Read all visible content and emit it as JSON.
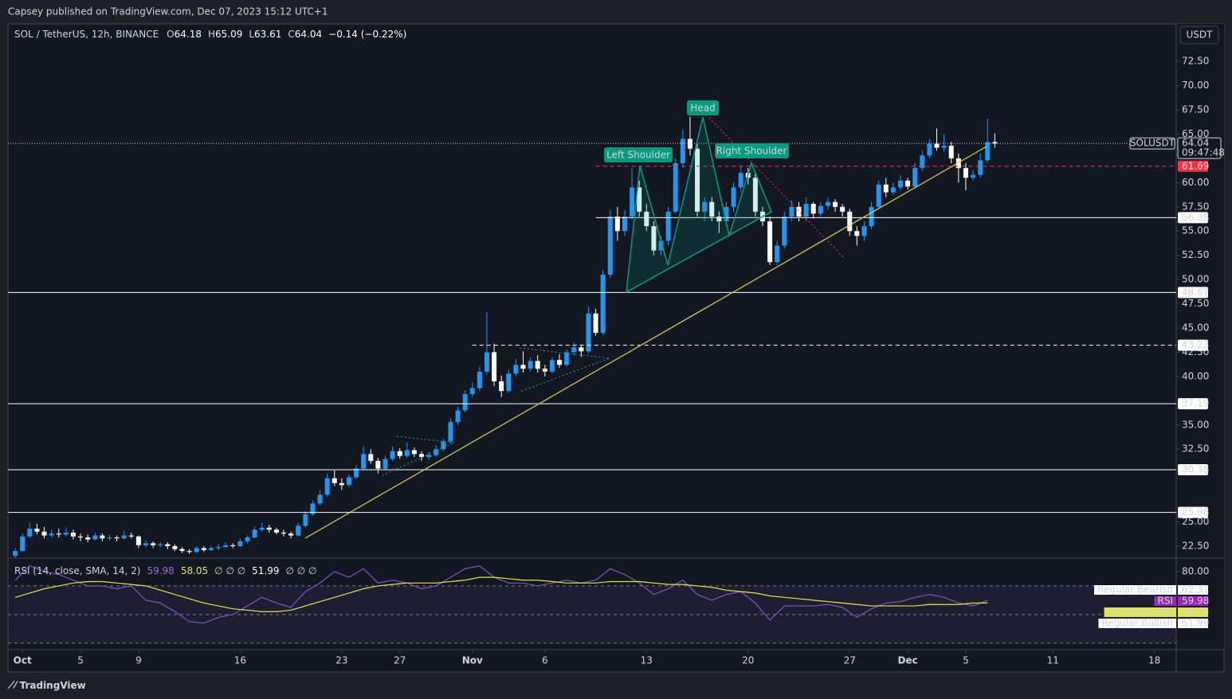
{
  "header": {
    "published": "Capsey published on TradingView.com, Dec 07, 2023 15:12 UTC+1",
    "symbol": "SOL / TetherUS, 12h, BINANCE",
    "ohlc_keys": [
      "O",
      "H",
      "L",
      "C"
    ],
    "ohlc_values": [
      "64.18",
      "65.09",
      "63.61",
      "64.04"
    ],
    "change": "−0.14 (−0.22%)",
    "footer": "TradingView"
  },
  "annotations": {
    "head": "Head",
    "left": "Left Shoulder",
    "right": "Right Shoulder"
  },
  "chart_data": [
    {
      "type": "candlestick",
      "currency": "USDT",
      "symbol_label": "SOLUSDT",
      "countdown": "09:47:48",
      "last_price": 64.04,
      "up_color": "#2196f3",
      "down_color": "#ffffff",
      "ylim": [
        21.27,
        76.37
      ],
      "yticks": [
        {
          "value": 72.5,
          "label": "72.50"
        },
        {
          "value": 70,
          "label": "70.00"
        },
        {
          "value": 67.5,
          "label": "67.50"
        },
        {
          "value": 65,
          "label": "65.00"
        },
        {
          "value": 60,
          "label": "60.00"
        },
        {
          "value": 57.5,
          "label": "57.50"
        },
        {
          "value": 55,
          "label": "55.00"
        },
        {
          "value": 52.5,
          "label": "52.50"
        },
        {
          "value": 50,
          "label": "50.00"
        },
        {
          "value": 47.5,
          "label": "47.50"
        },
        {
          "value": 45,
          "label": "45.00"
        },
        {
          "value": 42.5,
          "label": "42.50"
        },
        {
          "value": 40,
          "label": "40.00"
        },
        {
          "value": 35,
          "label": "35.00"
        },
        {
          "value": 32.5,
          "label": "32.50"
        },
        {
          "value": 25,
          "label": "25.00"
        },
        {
          "value": 22.5,
          "label": "22.50"
        }
      ],
      "xlim": [
        -1,
        160
      ],
      "xticks": [
        {
          "value": 1,
          "label": "Oct"
        },
        {
          "value": 9,
          "label": "5"
        },
        {
          "value": 17,
          "label": "9"
        },
        {
          "value": 31,
          "label": "16"
        },
        {
          "value": 45,
          "label": "23"
        },
        {
          "value": 53,
          "label": "27"
        },
        {
          "value": 63,
          "label": "Nov"
        },
        {
          "value": 73,
          "label": "6"
        },
        {
          "value": 87,
          "label": "13"
        },
        {
          "value": 101,
          "label": "20"
        },
        {
          "value": 115,
          "label": "27"
        },
        {
          "value": 123,
          "label": "Dec"
        },
        {
          "value": 131,
          "label": "5"
        },
        {
          "value": 143,
          "label": "11"
        },
        {
          "value": 157,
          "label": "18"
        }
      ],
      "levels": [
        {
          "value": 61.69,
          "style": "dashed",
          "color": "#f23645",
          "start": 80
        },
        {
          "value": 56.38,
          "style": "solid",
          "color": "#ffffff",
          "start": 80
        },
        {
          "value": 48.67,
          "style": "solid",
          "color": "#ffffff"
        },
        {
          "value": 43.23,
          "style": "dashed",
          "color": "#ffffff",
          "start": 63
        },
        {
          "value": 37.19,
          "style": "solid",
          "color": "#ffffff"
        },
        {
          "value": 30.38,
          "style": "solid",
          "color": "#ffffff"
        },
        {
          "value": 25.98,
          "style": "solid",
          "color": "#ffffff"
        }
      ],
      "candles": [
        [
          21.5,
          22.3,
          21.3,
          22.0
        ],
        [
          22.0,
          23.8,
          21.9,
          23.5
        ],
        [
          23.5,
          24.9,
          23.3,
          24.3
        ],
        [
          24.3,
          24.8,
          23.7,
          24.0
        ],
        [
          24.0,
          24.5,
          23.3,
          23.6
        ],
        [
          23.6,
          24.2,
          23.4,
          23.8
        ],
        [
          23.8,
          24.3,
          23.4,
          23.7
        ],
        [
          23.7,
          24.4,
          23.5,
          23.9
        ],
        [
          23.9,
          24.2,
          23.2,
          23.5
        ],
        [
          23.5,
          23.8,
          23.0,
          23.4
        ],
        [
          23.4,
          23.7,
          22.9,
          23.2
        ],
        [
          23.2,
          23.9,
          23.1,
          23.6
        ],
        [
          23.6,
          23.8,
          23.0,
          23.3
        ],
        [
          23.3,
          23.7,
          23.1,
          23.4
        ],
        [
          23.4,
          23.6,
          23.0,
          23.3
        ],
        [
          23.3,
          24.1,
          23.2,
          23.6
        ],
        [
          23.6,
          23.9,
          23.3,
          23.5
        ],
        [
          23.5,
          23.6,
          22.3,
          22.6
        ],
        [
          22.6,
          23.1,
          22.4,
          22.8
        ],
        [
          22.8,
          23.0,
          22.3,
          22.6
        ],
        [
          22.6,
          22.9,
          22.4,
          22.7
        ],
        [
          22.7,
          22.9,
          22.2,
          22.5
        ],
        [
          22.5,
          22.7,
          22.0,
          22.2
        ],
        [
          22.2,
          22.4,
          21.8,
          22.0
        ],
        [
          22.0,
          22.2,
          21.7,
          21.9
        ],
        [
          21.9,
          22.5,
          21.8,
          22.3
        ],
        [
          22.3,
          22.5,
          21.9,
          22.1
        ],
        [
          22.1,
          22.5,
          22.0,
          22.3
        ],
        [
          22.3,
          22.7,
          22.1,
          22.4
        ],
        [
          22.4,
          22.9,
          22.3,
          22.6
        ],
        [
          22.6,
          22.8,
          22.3,
          22.5
        ],
        [
          22.5,
          23.3,
          22.4,
          23.0
        ],
        [
          23.0,
          23.6,
          22.8,
          23.4
        ],
        [
          23.4,
          24.5,
          23.3,
          24.2
        ],
        [
          24.2,
          24.9,
          24.0,
          24.4
        ],
        [
          24.4,
          24.7,
          23.9,
          24.2
        ],
        [
          24.2,
          24.4,
          23.7,
          23.9
        ],
        [
          23.9,
          24.2,
          23.5,
          23.8
        ],
        [
          23.8,
          24.0,
          23.3,
          23.6
        ],
        [
          23.6,
          24.9,
          23.5,
          24.6
        ],
        [
          24.6,
          26.1,
          24.4,
          25.8
        ],
        [
          25.8,
          27.2,
          25.6,
          26.9
        ],
        [
          26.9,
          28.3,
          26.7,
          27.8
        ],
        [
          27.8,
          30.0,
          27.6,
          29.5
        ],
        [
          29.5,
          30.3,
          28.7,
          29.0
        ],
        [
          29.0,
          29.5,
          28.3,
          28.8
        ],
        [
          28.8,
          29.9,
          28.6,
          29.6
        ],
        [
          29.6,
          30.9,
          29.4,
          30.5
        ],
        [
          30.5,
          32.8,
          30.3,
          32.0
        ],
        [
          32.0,
          32.5,
          31.0,
          31.3
        ],
        [
          31.3,
          31.6,
          30.0,
          30.5
        ],
        [
          30.5,
          31.8,
          30.3,
          31.5
        ],
        [
          31.5,
          32.8,
          31.3,
          32.3
        ],
        [
          32.3,
          32.6,
          31.5,
          31.8
        ],
        [
          31.8,
          33.2,
          31.6,
          32.4
        ],
        [
          32.4,
          32.7,
          31.7,
          32.0
        ],
        [
          32.0,
          32.3,
          31.3,
          31.7
        ],
        [
          31.7,
          32.2,
          31.4,
          31.9
        ],
        [
          31.9,
          32.9,
          31.7,
          32.5
        ],
        [
          32.5,
          33.6,
          32.3,
          33.3
        ],
        [
          33.3,
          35.7,
          33.1,
          35.3
        ],
        [
          35.3,
          36.9,
          35.0,
          36.5
        ],
        [
          36.5,
          38.6,
          36.3,
          38.2
        ],
        [
          38.2,
          39.4,
          37.9,
          38.8
        ],
        [
          38.8,
          41.0,
          38.5,
          40.5
        ],
        [
          40.5,
          46.6,
          40.2,
          42.5
        ],
        [
          42.5,
          43.4,
          39.0,
          39.5
        ],
        [
          39.5,
          40.1,
          37.9,
          38.5
        ],
        [
          38.5,
          40.7,
          38.3,
          40.3
        ],
        [
          40.3,
          41.8,
          40.0,
          41.2
        ],
        [
          41.2,
          42.6,
          40.4,
          40.8
        ],
        [
          40.8,
          42.0,
          40.5,
          41.6
        ],
        [
          41.6,
          42.2,
          40.4,
          40.8
        ],
        [
          40.8,
          41.2,
          40.0,
          40.5
        ],
        [
          40.5,
          42.0,
          40.3,
          41.7
        ],
        [
          41.7,
          42.3,
          40.9,
          41.2
        ],
        [
          41.2,
          42.8,
          41.0,
          42.5
        ],
        [
          42.5,
          43.5,
          42.2,
          43.0
        ],
        [
          43.0,
          43.3,
          42.0,
          42.6
        ],
        [
          42.6,
          47.2,
          42.4,
          46.5
        ],
        [
          46.5,
          47.0,
          44.2,
          44.5
        ],
        [
          44.5,
          51.0,
          44.3,
          50.5
        ],
        [
          50.5,
          57.2,
          50.2,
          56.5
        ],
        [
          56.5,
          57.5,
          54.0,
          55.0
        ],
        [
          55.0,
          57.2,
          54.5,
          56.5
        ],
        [
          56.5,
          61.5,
          56.2,
          59.5
        ],
        [
          59.5,
          60.2,
          56.5,
          57.0
        ],
        [
          57.0,
          57.8,
          55.0,
          55.5
        ],
        [
          55.5,
          56.0,
          52.5,
          53.0
        ],
        [
          53.0,
          54.5,
          52.5,
          54.0
        ],
        [
          54.0,
          57.5,
          53.5,
          57.0
        ],
        [
          57.0,
          62.5,
          56.8,
          62.0
        ],
        [
          62.0,
          65.5,
          61.5,
          64.5
        ],
        [
          64.5,
          66.8,
          62.8,
          63.5
        ],
        [
          63.5,
          64.0,
          56.5,
          57.0
        ],
        [
          57.0,
          58.5,
          56.0,
          58.0
        ],
        [
          58.0,
          58.5,
          56.0,
          56.5
        ],
        [
          56.5,
          57.0,
          54.8,
          56.0
        ],
        [
          56.0,
          58.0,
          55.5,
          57.5
        ],
        [
          57.5,
          60.0,
          57.0,
          59.5
        ],
        [
          59.5,
          61.8,
          59.0,
          61.0
        ],
        [
          61.0,
          61.5,
          59.8,
          60.5
        ],
        [
          60.5,
          61.0,
          56.5,
          57.0
        ],
        [
          57.0,
          57.5,
          55.5,
          56.0
        ],
        [
          56.0,
          56.5,
          51.5,
          51.8
        ],
        [
          51.8,
          54.0,
          51.5,
          53.5
        ],
        [
          53.5,
          57.0,
          53.2,
          56.5
        ],
        [
          56.5,
          58.2,
          56.0,
          57.5
        ],
        [
          57.5,
          58.0,
          56.0,
          56.5
        ],
        [
          56.5,
          58.5,
          56.0,
          57.8
        ],
        [
          57.8,
          58.0,
          56.3,
          56.8
        ],
        [
          56.8,
          58.0,
          56.5,
          57.6
        ],
        [
          57.6,
          58.5,
          57.2,
          58.0
        ],
        [
          58.0,
          58.3,
          57.0,
          57.5
        ],
        [
          57.5,
          57.8,
          56.5,
          57.0
        ],
        [
          57.0,
          57.3,
          54.5,
          55.0
        ],
        [
          55.0,
          55.5,
          53.5,
          54.5
        ],
        [
          54.5,
          56.0,
          54.0,
          55.5
        ],
        [
          55.5,
          58.0,
          55.2,
          57.5
        ],
        [
          57.5,
          60.2,
          57.3,
          59.8
        ],
        [
          59.8,
          60.5,
          58.5,
          59.0
        ],
        [
          59.0,
          60.0,
          58.7,
          59.5
        ],
        [
          59.5,
          60.8,
          59.2,
          60.2
        ],
        [
          60.2,
          60.5,
          59.3,
          59.6
        ],
        [
          59.6,
          62.0,
          59.4,
          61.5
        ],
        [
          61.5,
          63.3,
          61.2,
          62.8
        ],
        [
          62.8,
          64.5,
          62.5,
          64.0
        ],
        [
          64.0,
          65.6,
          63.3,
          63.6
        ],
        [
          63.6,
          65.0,
          63.2,
          63.8
        ],
        [
          63.8,
          64.2,
          62.0,
          62.5
        ],
        [
          62.5,
          63.0,
          60.0,
          61.5
        ],
        [
          61.5,
          62.0,
          59.2,
          60.5
        ],
        [
          60.5,
          61.3,
          60.2,
          60.8
        ],
        [
          60.8,
          63.0,
          60.5,
          62.3
        ],
        [
          62.3,
          66.6,
          62.0,
          64.18
        ],
        [
          64.18,
          65.09,
          63.61,
          64.04
        ]
      ]
    },
    {
      "type": "line",
      "title": "RSI (14, close, SMA, 14, 2)",
      "header_values": [
        "59.98",
        "58.05",
        "∅ ∅ ∅",
        "51.99",
        "∅ ∅ ∅"
      ],
      "header_colors": [
        "#9c6ade",
        "#e0e64a",
        "#d1d4dc",
        "#ffffff",
        "#d1d4dc"
      ],
      "ylim": [
        25.43,
        89.43
      ],
      "yticks": [
        {
          "value": 80,
          "label": "80.00"
        }
      ],
      "bands": [
        70,
        50,
        30
      ],
      "x": [
        0,
        2,
        4,
        6,
        8,
        10,
        12,
        14,
        16,
        18,
        20,
        22,
        24,
        26,
        28,
        30,
        32,
        34,
        36,
        38,
        40,
        42,
        44,
        46,
        48,
        50,
        52,
        54,
        56,
        58,
        60,
        62,
        64,
        66,
        68,
        70,
        72,
        74,
        76,
        78,
        80,
        82,
        84,
        86,
        88,
        90,
        92,
        94,
        96,
        98,
        100,
        102,
        104,
        106,
        108,
        110,
        112,
        114,
        116,
        118,
        120,
        122,
        124,
        126,
        128,
        130,
        132,
        134
      ],
      "series": [
        {
          "name": "RSI",
          "color": "#7e57c2",
          "values": [
            74,
            84,
            80,
            78,
            74,
            70,
            70,
            68,
            70,
            60,
            58,
            52,
            45,
            44,
            48,
            50,
            56,
            62,
            58,
            55,
            66,
            72,
            80,
            76,
            82,
            72,
            74,
            72,
            68,
            70,
            76,
            82,
            84,
            76,
            72,
            72,
            70,
            72,
            74,
            72,
            74,
            82,
            78,
            72,
            64,
            68,
            74,
            64,
            60,
            64,
            66,
            58,
            46,
            56,
            56,
            56,
            57,
            55,
            48,
            54,
            58,
            59,
            62,
            64,
            62,
            58,
            56,
            59.98
          ]
        },
        {
          "name": "RSI-based MA",
          "color": "#e0e64a",
          "values": [
            62,
            65,
            68,
            70,
            72,
            73,
            73,
            72,
            71,
            70,
            67,
            64,
            61,
            58,
            56,
            54,
            53,
            52,
            52,
            53,
            56,
            59,
            62,
            65,
            68,
            70,
            71,
            72,
            72,
            72,
            73,
            74,
            76,
            76,
            75,
            74,
            74,
            73,
            72,
            72,
            72,
            73,
            73,
            73,
            72,
            71,
            71,
            70,
            69,
            67,
            66,
            65,
            63,
            62,
            61,
            60,
            59,
            58,
            57,
            56,
            56,
            56,
            56,
            57,
            57,
            57,
            58,
            58.05
          ]
        }
      ],
      "tags": [
        {
          "name": "Regular Bearish",
          "value": 62.31,
          "bg": "#ffffff",
          "fg": "#131722"
        },
        {
          "name": "RSI",
          "value": 59.98,
          "bg": "#9c27b0",
          "fg": "#ffffff"
        },
        {
          "name": "RSI-based MA",
          "value": 58.05,
          "bg": "#e0e64a",
          "fg": "#131722"
        },
        {
          "name": "Regular Bullish",
          "value": 51.99,
          "bg": "#ffffff",
          "fg": "#131722"
        }
      ]
    }
  ]
}
